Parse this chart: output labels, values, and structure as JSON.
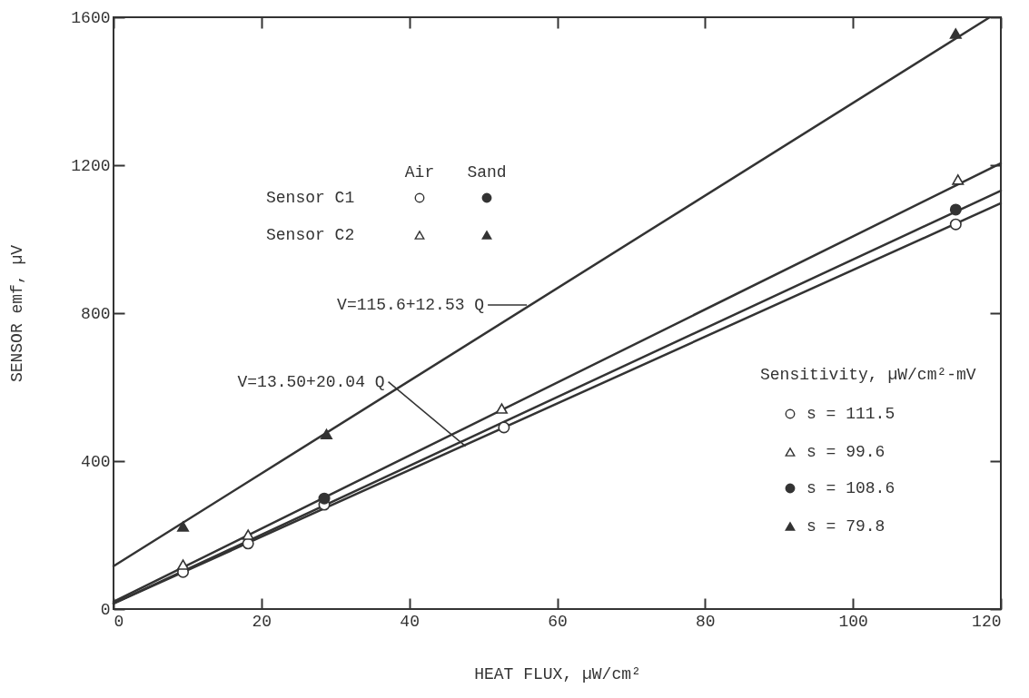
{
  "chart_data": {
    "type": "scatter",
    "xlabel": "HEAT FLUX, µW/cm²",
    "ylabel": "SENSOR emf, µV",
    "xlim": [
      0,
      120
    ],
    "ylim": [
      0,
      1600
    ],
    "xticks": [
      0,
      20,
      40,
      60,
      80,
      100,
      120
    ],
    "yticks": [
      0,
      400,
      800,
      1200,
      1600
    ],
    "grid": false,
    "series": [
      {
        "marker": "circle",
        "color": "#ffffff",
        "x": [
          9.4,
          18.2,
          28.5,
          52.8,
          113.9
        ],
        "values": [
          100,
          177,
          282,
          491,
          1040
        ]
      },
      {
        "marker": "triangle",
        "color": "#ffffff",
        "x": [
          9.4,
          18.2,
          52.5,
          114.2
        ],
        "values": [
          120,
          201,
          542,
          1161
        ]
      },
      {
        "marker": "circle",
        "color": "#333333",
        "x": [
          28.5,
          113.9
        ],
        "values": [
          299,
          1080
        ]
      },
      {
        "marker": "triangle",
        "color": "#333333",
        "x": [
          9.4,
          28.8,
          113.9
        ],
        "values": [
          223,
          473,
          1556
        ]
      },
      {
        "type": "line",
        "marker": "none",
        "color": "#333333",
        "x": [
          0,
          120
        ],
        "values": [
          15,
          1097
        ]
      },
      {
        "type": "line",
        "marker": "none",
        "color": "#333333",
        "x": [
          0,
          120
        ],
        "values": [
          20,
          1205
        ]
      },
      {
        "type": "line",
        "marker": "none",
        "color": "#333333",
        "x": [
          0,
          120
        ],
        "values": [
          15,
          1131
        ]
      },
      {
        "type": "line",
        "marker": "none",
        "color": "#333333",
        "x": [
          0,
          118.5
        ],
        "values": [
          116,
          1600
        ]
      }
    ],
    "annotations": [
      "Air",
      "Sand",
      "Sensor C1",
      "Sensor C2",
      "Sensitivity, µW/cm²-mV",
      "s = 111.5",
      "s = 99.6",
      "s = 108.6",
      "s = 79.8",
      {
        "text": "V=115.6+12.53 Q",
        "x": 55.9,
        "y": 822
      },
      {
        "text": "V=13.50+20.04 Q",
        "x": 47.6,
        "y": 440
      }
    ]
  }
}
